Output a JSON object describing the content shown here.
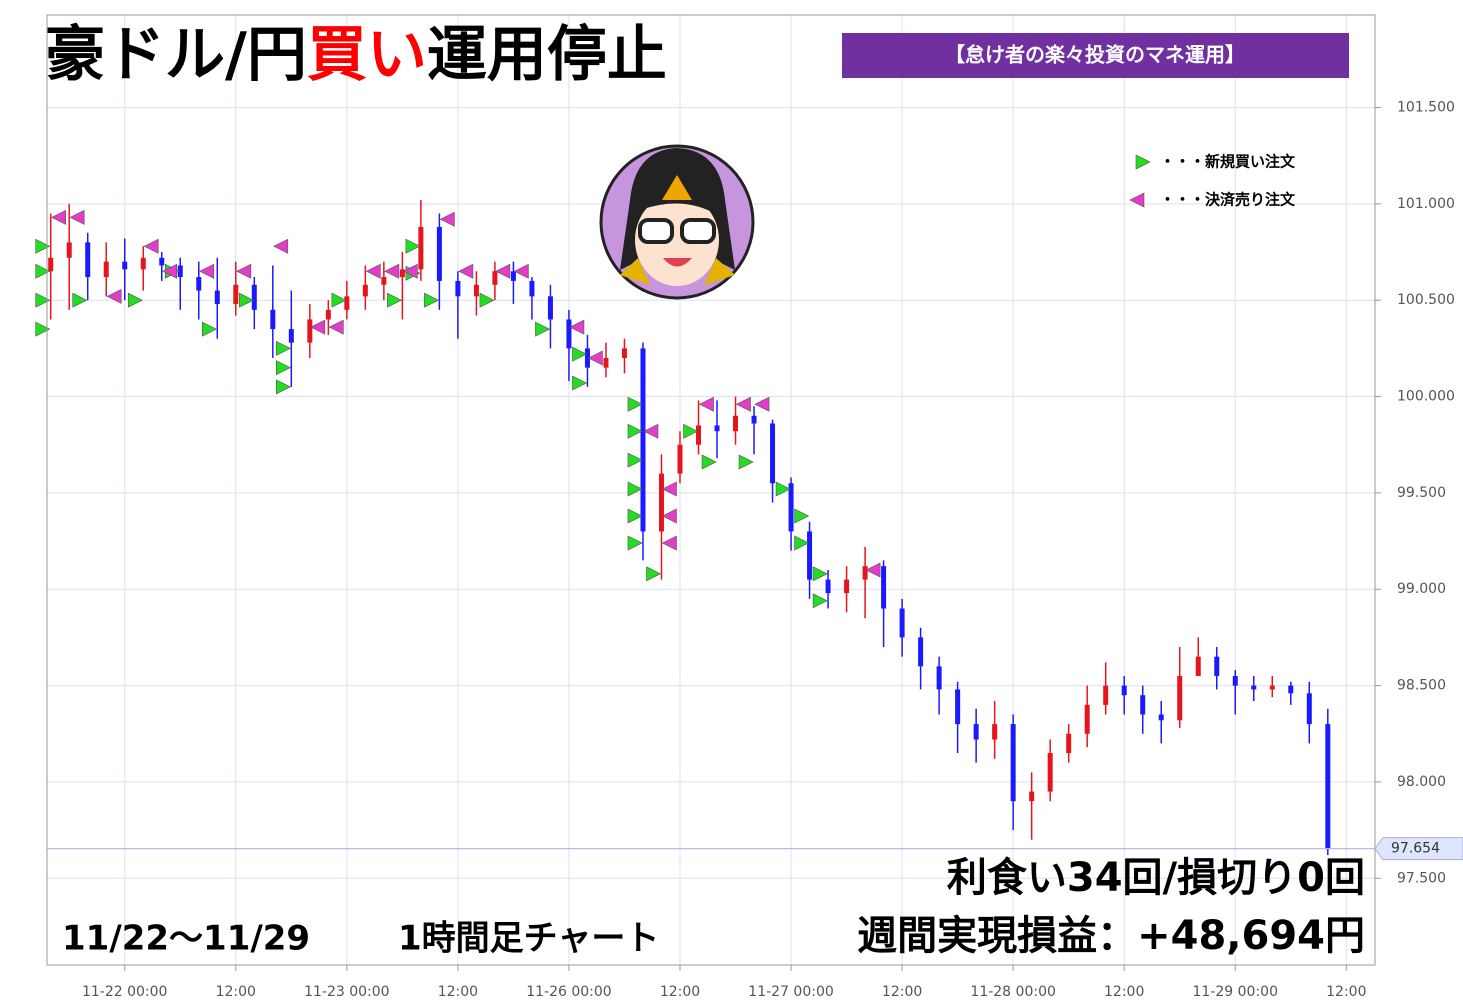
{
  "header": {
    "title_prefix": "豪ドル/円",
    "title_highlight": "買い",
    "title_suffix": "運用停止",
    "banner": "【怠け者の楽々投資のマネ運用】"
  },
  "summary": {
    "period": "11/22～11/29",
    "timeframe": "1時間足チャート",
    "trades": "利食い34回/損切り0回",
    "profit": "週間実現損益：+48,694円"
  },
  "chart_data": {
    "type": "candlestick",
    "up_color": "#e8141c",
    "down_color": "#1a1aff",
    "grid": true,
    "x": [
      -8,
      -6,
      -4,
      -2,
      0,
      2,
      4,
      6,
      8,
      10,
      12,
      14,
      16,
      18,
      20,
      22,
      24,
      26,
      28,
      30,
      32,
      34,
      36,
      38,
      40,
      42,
      44,
      46,
      48,
      50,
      52,
      54,
      56,
      58,
      60,
      62,
      64,
      66,
      68,
      70,
      72,
      74,
      76,
      78,
      80,
      82,
      84,
      86,
      88,
      90,
      92,
      94,
      96,
      98,
      100,
      102,
      104,
      106,
      108,
      110,
      112,
      114,
      116,
      118,
      120,
      122,
      124,
      126,
      128,
      130
    ],
    "open": [
      100.65,
      100.72,
      100.8,
      100.62,
      100.7,
      100.66,
      100.72,
      100.68,
      100.62,
      100.55,
      100.48,
      100.58,
      100.45,
      100.35,
      100.28,
      100.4,
      100.45,
      100.52,
      100.58,
      100.62,
      100.66,
      100.88,
      100.6,
      100.52,
      100.58,
      100.65,
      100.6,
      100.52,
      100.4,
      100.25,
      100.15,
      100.2,
      100.25,
      99.3,
      99.6,
      99.75,
      99.85,
      99.82,
      99.9,
      99.86,
      99.55,
      99.3,
      99.05,
      98.98,
      99.05,
      99.12,
      98.9,
      98.75,
      98.6,
      98.48,
      98.3,
      98.22,
      98.3,
      97.9,
      97.95,
      98.15,
      98.25,
      98.4,
      98.5,
      98.45,
      98.35,
      98.32,
      98.55,
      98.65,
      98.55,
      98.5,
      98.48,
      98.5,
      98.46,
      98.3
    ],
    "high": [
      100.95,
      101.0,
      100.85,
      100.8,
      100.82,
      100.78,
      100.75,
      100.72,
      100.7,
      100.72,
      100.7,
      100.62,
      100.68,
      100.55,
      100.48,
      100.5,
      100.6,
      100.68,
      100.7,
      100.75,
      101.02,
      100.95,
      100.65,
      100.65,
      100.7,
      100.7,
      100.62,
      100.58,
      100.45,
      100.32,
      100.28,
      100.3,
      100.28,
      99.7,
      99.82,
      99.98,
      99.98,
      100.0,
      99.95,
      99.88,
      99.58,
      99.35,
      99.1,
      99.12,
      99.22,
      99.15,
      98.95,
      98.8,
      98.65,
      98.52,
      98.38,
      98.42,
      98.35,
      98.05,
      98.22,
      98.3,
      98.5,
      98.62,
      98.55,
      98.5,
      98.42,
      98.7,
      98.75,
      98.7,
      98.58,
      98.55,
      98.55,
      98.52,
      98.52,
      98.38
    ],
    "low": [
      100.4,
      100.45,
      100.5,
      100.52,
      100.5,
      100.55,
      100.6,
      100.45,
      100.4,
      100.3,
      100.42,
      100.35,
      100.2,
      100.05,
      100.2,
      100.32,
      100.4,
      100.45,
      100.5,
      100.4,
      100.6,
      100.45,
      100.3,
      100.42,
      100.5,
      100.48,
      100.4,
      100.25,
      100.08,
      100.05,
      100.1,
      100.12,
      99.15,
      99.05,
      99.55,
      99.7,
      99.68,
      99.75,
      99.7,
      99.45,
      99.2,
      98.95,
      98.9,
      98.88,
      98.85,
      98.7,
      98.65,
      98.48,
      98.35,
      98.15,
      98.1,
      98.12,
      97.75,
      97.7,
      97.9,
      98.1,
      98.18,
      98.35,
      98.35,
      98.25,
      98.2,
      98.28,
      98.55,
      98.48,
      98.35,
      98.42,
      98.44,
      98.4,
      98.2,
      97.62
    ],
    "close": [
      100.72,
      100.8,
      100.62,
      100.7,
      100.66,
      100.72,
      100.68,
      100.62,
      100.55,
      100.48,
      100.58,
      100.45,
      100.35,
      100.28,
      100.4,
      100.45,
      100.52,
      100.58,
      100.62,
      100.66,
      100.88,
      100.6,
      100.52,
      100.58,
      100.65,
      100.6,
      100.52,
      100.4,
      100.25,
      100.15,
      100.2,
      100.25,
      99.3,
      99.6,
      99.75,
      99.85,
      99.82,
      99.9,
      99.86,
      99.55,
      99.3,
      99.05,
      98.98,
      99.05,
      99.12,
      98.9,
      98.75,
      98.6,
      98.48,
      98.3,
      98.22,
      98.3,
      97.9,
      97.95,
      98.15,
      98.25,
      98.4,
      98.5,
      98.45,
      98.35,
      98.32,
      98.55,
      98.65,
      98.55,
      98.5,
      98.48,
      98.5,
      98.46,
      98.3,
      97.65
    ],
    "orders": [
      {
        "name": "・・・新規買い注文",
        "color": "#22dd22",
        "direction": "right",
        "x": [
          -8,
          -8,
          -8,
          -8,
          -4,
          2,
          6,
          10,
          14,
          18,
          18,
          18,
          24,
          30,
          32,
          32,
          34,
          40,
          46,
          50,
          50,
          56,
          56,
          56,
          56,
          56,
          56,
          58,
          62,
          64,
          68,
          72,
          74,
          74,
          76,
          76
        ],
        "y": [
          100.78,
          100.65,
          100.5,
          100.35,
          100.5,
          100.5,
          100.65,
          100.35,
          100.5,
          100.15,
          100.25,
          100.05,
          100.5,
          100.5,
          100.78,
          100.64,
          100.5,
          100.5,
          100.35,
          100.22,
          100.07,
          99.96,
          99.82,
          99.67,
          99.52,
          99.38,
          99.24,
          99.08,
          99.82,
          99.66,
          99.66,
          99.52,
          99.38,
          99.24,
          99.08,
          98.94
        ]
      },
      {
        "name": "・・・決済売り注文",
        "color": "#e23cc8",
        "direction": "left",
        "x": [
          -8,
          -6,
          -2,
          2,
          4,
          8,
          12,
          16,
          20,
          22,
          26,
          28,
          30,
          34,
          36,
          40,
          42,
          48,
          50,
          56,
          58,
          58,
          58,
          62,
          66,
          68,
          80
        ],
        "y": [
          100.93,
          100.93,
          100.52,
          100.78,
          100.65,
          100.65,
          100.65,
          100.78,
          100.36,
          100.36,
          100.65,
          100.65,
          100.65,
          100.92,
          100.65,
          100.65,
          100.65,
          100.36,
          100.2,
          99.82,
          99.52,
          99.38,
          99.24,
          99.96,
          99.96,
          99.96,
          99.1
        ]
      }
    ],
    "current_price": 97.654,
    "xlim": [
      -8.4,
      135.1
    ],
    "ylim": [
      97.05,
      101.98
    ],
    "xticks": [
      {
        "value": 0,
        "label": "11-22 00:00"
      },
      {
        "value": 12,
        "label": "12:00"
      },
      {
        "value": 24,
        "label": "11-23 00:00"
      },
      {
        "value": 36,
        "label": "12:00"
      },
      {
        "value": 48,
        "label": "11-26 00:00"
      },
      {
        "value": 60,
        "label": "12:00"
      },
      {
        "value": 72,
        "label": "11-27 00:00"
      },
      {
        "value": 84,
        "label": "12:00"
      },
      {
        "value": 96,
        "label": "11-28 00:00"
      },
      {
        "value": 108,
        "label": "12:00"
      },
      {
        "value": 120,
        "label": "11-29 00:00"
      },
      {
        "value": 132,
        "label": "12:00"
      }
    ],
    "yticks": [
      {
        "value": 97.5,
        "label": "97.500"
      },
      {
        "value": 98,
        "label": "98.000"
      },
      {
        "value": 98.5,
        "label": "98.500"
      },
      {
        "value": 99,
        "label": "99.000"
      },
      {
        "value": 99.5,
        "label": "99.500"
      },
      {
        "value": 100,
        "label": "100.000"
      },
      {
        "value": 100.5,
        "label": "100.500"
      },
      {
        "value": 101,
        "label": "101.000"
      },
      {
        "value": 101.5,
        "label": "101.500"
      }
    ]
  }
}
